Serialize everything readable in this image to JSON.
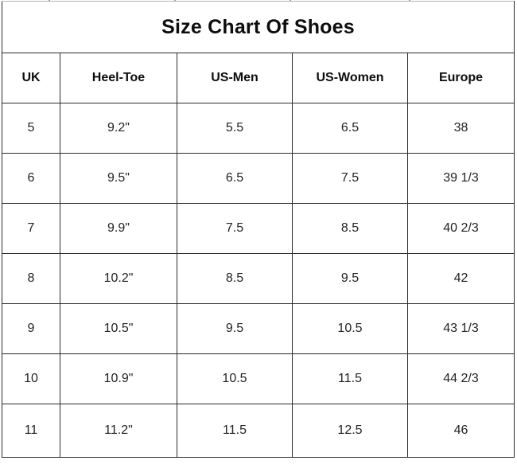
{
  "table": {
    "title": "Size Chart Of Shoes",
    "columns": [
      {
        "key": "uk",
        "label": "UK"
      },
      {
        "key": "heel_toe",
        "label": "Heel-Toe"
      },
      {
        "key": "us_men",
        "label": "US-Men"
      },
      {
        "key": "us_women",
        "label": "US-Women"
      },
      {
        "key": "europe",
        "label": "Europe"
      }
    ],
    "rows": [
      {
        "uk": "5",
        "heel_toe": "9.2\"",
        "us_men": "5.5",
        "us_women": "6.5",
        "europe": "38"
      },
      {
        "uk": "6",
        "heel_toe": "9.5\"",
        "us_men": "6.5",
        "us_women": "7.5",
        "europe": "39 1/3"
      },
      {
        "uk": "7",
        "heel_toe": "9.9\"",
        "us_men": "7.5",
        "us_women": "8.5",
        "europe": "40 2/3"
      },
      {
        "uk": "8",
        "heel_toe": "10.2\"",
        "us_men": "8.5",
        "us_women": "9.5",
        "europe": "42"
      },
      {
        "uk": "9",
        "heel_toe": "10.5\"",
        "us_men": "9.5",
        "us_women": "10.5",
        "europe": "43 1/3"
      },
      {
        "uk": "10",
        "heel_toe": "10.9\"",
        "us_men": "10.5",
        "us_women": "11.5",
        "europe": "44 2/3"
      },
      {
        "uk": "11",
        "heel_toe": "11.2\"",
        "us_men": "11.5",
        "us_women": "12.5",
        "europe": "46"
      }
    ]
  },
  "colors": {
    "background": "#ffffff",
    "grid_border": "#2b2b2b",
    "top_edge": "#b5b5b5",
    "text": "#212326",
    "title_text": "#0d0d0d"
  }
}
